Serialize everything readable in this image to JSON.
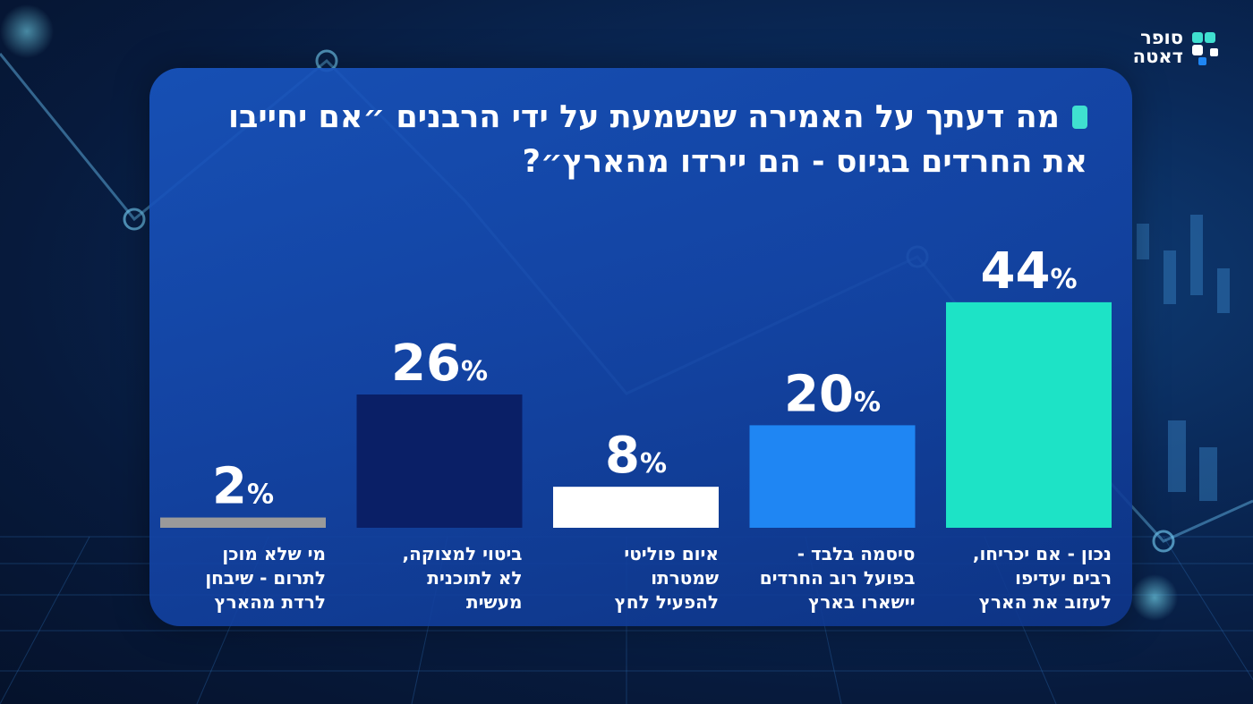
{
  "brand": {
    "name": "סופר דאטה"
  },
  "title": "מה דעתך על האמירה שנשמעת על ידי הרבנים ״אם יחייבו את החרדים בגיוס - הם יירדו מהארץ״?",
  "colors": {
    "accent": "#3fe0d0"
  },
  "chart_data": {
    "type": "bar",
    "title": "מה דעתך על האמירה שנשמעת על ידי הרבנים ״אם יחייבו את החרדים בגיוס - הם יירדו מהארץ״?",
    "categories": [
      [
        "נכון - אם יכריחו,",
        "רבים יעדיפו",
        "לעזוב את הארץ"
      ],
      [
        "סיסמה בלבד -",
        "בפועל רוב החרדים",
        "יישארו בארץ"
      ],
      [
        "איום פוליטי",
        "שמטרתו",
        "להפעיל לחץ"
      ],
      [
        "ביטוי למצוקה,",
        "לא לתוכנית",
        "מעשית"
      ],
      [
        "מי שלא מוכן",
        "לתרום - שיבחן",
        "לרדת מהארץ"
      ]
    ],
    "values": [
      44,
      20,
      8,
      26,
      2
    ],
    "value_suffix": "%",
    "bar_colors": [
      "#1de3c6",
      "#1f86f3",
      "#ffffff",
      "#0a1f66",
      "#9a9a9a"
    ],
    "direction": "rtl",
    "ylim": [
      0,
      50
    ]
  }
}
